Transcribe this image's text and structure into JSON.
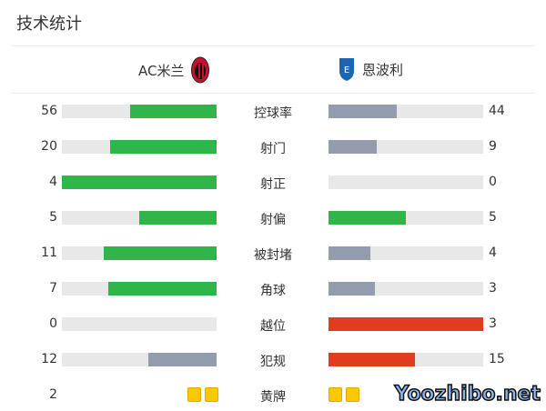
{
  "title": "技术统计",
  "home": {
    "name": "AC米兰",
    "logo": "ac-milan-crest-icon"
  },
  "away": {
    "name": "恩波利",
    "logo": "empoli-crest-icon"
  },
  "colors": {
    "green": "#30b648",
    "grey": "#939cad",
    "red": "#e03c1f",
    "yellow": "#fcc800",
    "track": "#e8e8e8"
  },
  "stats": [
    {
      "label": "控球率",
      "home": "56",
      "away": "44",
      "home_fraction": 0.56,
      "away_fraction": 0.44,
      "home_color": "#30b648",
      "away_color": "#939cad"
    },
    {
      "label": "射门",
      "home": "20",
      "away": "9",
      "home_fraction": 0.69,
      "away_fraction": 0.31,
      "home_color": "#30b648",
      "away_color": "#939cad"
    },
    {
      "label": "射正",
      "home": "4",
      "away": "0",
      "home_fraction": 1,
      "away_fraction": 0,
      "home_color": "#30b648",
      "away_color": "#939cad"
    },
    {
      "label": "射偏",
      "home": "5",
      "away": "5",
      "home_fraction": 0.5,
      "away_fraction": 0.5,
      "home_color": "#30b648",
      "away_color": "#30b648"
    },
    {
      "label": "被封堵",
      "home": "11",
      "away": "4",
      "home_fraction": 0.73,
      "away_fraction": 0.27,
      "home_color": "#30b648",
      "away_color": "#939cad"
    },
    {
      "label": "角球",
      "home": "7",
      "away": "3",
      "home_fraction": 0.7,
      "away_fraction": 0.3,
      "home_color": "#30b648",
      "away_color": "#939cad"
    },
    {
      "label": "越位",
      "home": "0",
      "away": "3",
      "home_fraction": 0,
      "away_fraction": 1,
      "home_color": "#939cad",
      "away_color": "#e03c1f"
    },
    {
      "label": "犯规",
      "home": "12",
      "away": "15",
      "home_fraction": 0.44,
      "away_fraction": 0.56,
      "home_color": "#939cad",
      "away_color": "#e03c1f"
    }
  ],
  "yellow_cards": {
    "label": "黄牌",
    "home": "2",
    "home_count": 2,
    "away_count": 2
  },
  "watermark": "Yoozhibo.net"
}
